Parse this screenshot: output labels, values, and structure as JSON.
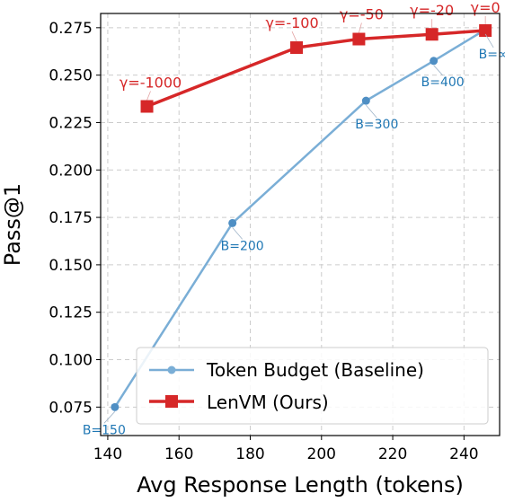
{
  "chart_data": {
    "type": "line",
    "xlabel": "Avg Response Length (tokens)",
    "ylabel": "Pass@1",
    "xlim": [
      138,
      250
    ],
    "ylim": [
      0.06,
      0.2825
    ],
    "x_ticks": [
      140,
      160,
      180,
      200,
      220,
      240
    ],
    "y_ticks": [
      0.075,
      0.1,
      0.125,
      0.15,
      0.175,
      0.2,
      0.225,
      0.25,
      0.275
    ],
    "grid": true,
    "legend_position": "lower-right",
    "series": [
      {
        "name": "Token Budget (Baseline)",
        "color": "#7aaed6",
        "marker": "circle",
        "points": [
          {
            "x": 142,
            "y": 0.075,
            "label": "B=150"
          },
          {
            "x": 175,
            "y": 0.172,
            "label": "B=200"
          },
          {
            "x": 212.5,
            "y": 0.2365,
            "label": "B=300"
          },
          {
            "x": 231.5,
            "y": 0.2575,
            "label": "B=400"
          },
          {
            "x": 246,
            "y": 0.274,
            "label": "B=∞"
          }
        ]
      },
      {
        "name": "LenVM (Ours)",
        "color": "#d62728",
        "marker": "square",
        "points": [
          {
            "x": 151,
            "y": 0.2335,
            "label": "γ=-1000"
          },
          {
            "x": 193,
            "y": 0.2645,
            "label": "γ=-100"
          },
          {
            "x": 210.5,
            "y": 0.269,
            "label": "γ=-50"
          },
          {
            "x": 231,
            "y": 0.2715,
            "label": "γ=-20"
          },
          {
            "x": 246,
            "y": 0.2735,
            "label": "γ=0"
          }
        ]
      }
    ]
  }
}
